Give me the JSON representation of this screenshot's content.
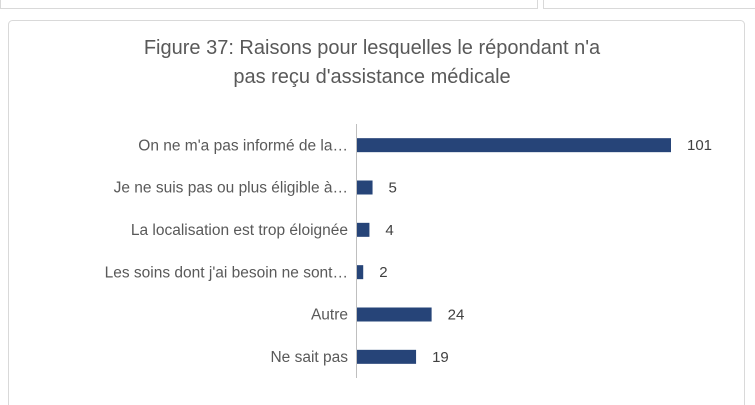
{
  "chart_data": {
    "type": "hbar",
    "title": "Figure 37: Raisons pour lesquelles le répondant n'a pas reçu d'assistance médicale",
    "categories": [
      "On ne m'a pas informé de la…",
      "Je ne suis pas ou plus éligible à…",
      "La localisation est trop éloignée",
      "Les soins dont j'ai besoin ne sont…",
      "Autre",
      "Ne sait pas"
    ],
    "values": [
      101,
      5,
      4,
      2,
      24,
      19
    ],
    "color": "#264478"
  }
}
